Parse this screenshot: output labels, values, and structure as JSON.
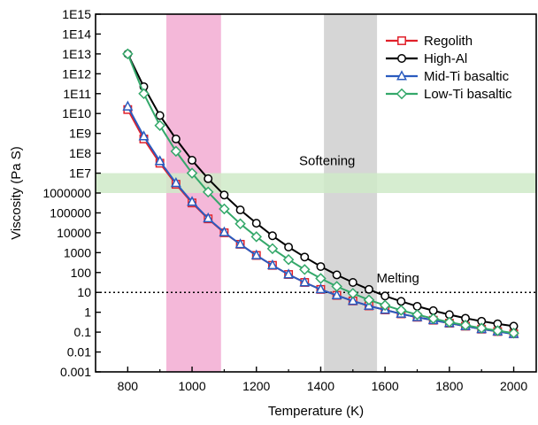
{
  "chart_data": {
    "type": "line",
    "title": "",
    "xlabel": "Temperature (K)",
    "ylabel": "Viscosity (Pa S)",
    "xlim": [
      700,
      2070
    ],
    "ylog": true,
    "ylim_exp": [
      -3,
      15
    ],
    "x_ticks": [
      800,
      1000,
      1200,
      1400,
      1600,
      1800,
      2000
    ],
    "y_tick_labels": [
      "0.001",
      "0.01",
      "0.1",
      "1",
      "10",
      "100",
      "1000",
      "10000",
      "100000",
      "1000000",
      "1E7",
      "1E8",
      "1E9",
      "1E10",
      "1E11",
      "1E12",
      "1E13",
      "1E14",
      "1E15"
    ],
    "grid": false,
    "legend_position": "top-right",
    "bands": [
      {
        "orientation": "vertical",
        "x0": 920,
        "x1": 1090,
        "color": "#f0a0cc"
      },
      {
        "orientation": "vertical",
        "x0": 1410,
        "x1": 1575,
        "color": "#c8c8c8"
      },
      {
        "orientation": "horizontal",
        "y0_exp": 6.0,
        "y1_exp": 7.0,
        "color": "#cfeac8"
      }
    ],
    "reference_line": {
      "y": 10,
      "style": "dotted"
    },
    "annotations": [
      {
        "text": "Softening",
        "x": 1420,
        "y_exp": 7.4
      },
      {
        "text": "Melting",
        "x": 1640,
        "y_exp": 1.5
      }
    ],
    "x": [
      800,
      850,
      900,
      950,
      1000,
      1050,
      1100,
      1150,
      1200,
      1250,
      1300,
      1350,
      1400,
      1450,
      1500,
      1550,
      1600,
      1650,
      1700,
      1750,
      1800,
      1850,
      1900,
      1950,
      2000
    ],
    "series": [
      {
        "name": "Regolith",
        "color": "#e0202a",
        "marker": "square",
        "log10_values": [
          10.2,
          8.72,
          7.5,
          6.44,
          5.5,
          4.7,
          4.0,
          3.42,
          2.86,
          2.36,
          1.9,
          1.5,
          1.15,
          0.85,
          0.57,
          0.32,
          0.12,
          -0.08,
          -0.25,
          -0.4,
          -0.55,
          -0.7,
          -0.85,
          -0.97,
          -1.08
        ]
      },
      {
        "name": "High-Al",
        "color": "#000000",
        "marker": "circle",
        "log10_values": [
          13.0,
          11.35,
          9.9,
          8.72,
          7.65,
          6.72,
          5.9,
          5.15,
          4.48,
          3.85,
          3.28,
          2.78,
          2.3,
          1.88,
          1.5,
          1.15,
          0.82,
          0.55,
          0.3,
          0.08,
          -0.12,
          -0.3,
          -0.45,
          -0.58,
          -0.7
        ]
      },
      {
        "name": "Mid-Ti basaltic",
        "color": "#2a5bbf",
        "marker": "triangle",
        "log10_values": [
          10.35,
          8.85,
          7.6,
          6.5,
          5.55,
          4.72,
          4.02,
          3.42,
          2.86,
          2.36,
          1.9,
          1.5,
          1.15,
          0.85,
          0.57,
          0.32,
          0.12,
          -0.08,
          -0.25,
          -0.4,
          -0.55,
          -0.7,
          -0.85,
          -0.97,
          -1.1
        ]
      },
      {
        "name": "Low-Ti basaltic",
        "color": "#34a86a",
        "marker": "diamond",
        "log10_values": [
          13.0,
          11.0,
          9.4,
          8.1,
          7.0,
          6.05,
          5.2,
          4.45,
          3.8,
          3.2,
          2.65,
          2.15,
          1.7,
          1.3,
          0.95,
          0.62,
          0.35,
          0.1,
          -0.12,
          -0.32,
          -0.5,
          -0.65,
          -0.8,
          -0.93,
          -1.05
        ]
      }
    ]
  }
}
